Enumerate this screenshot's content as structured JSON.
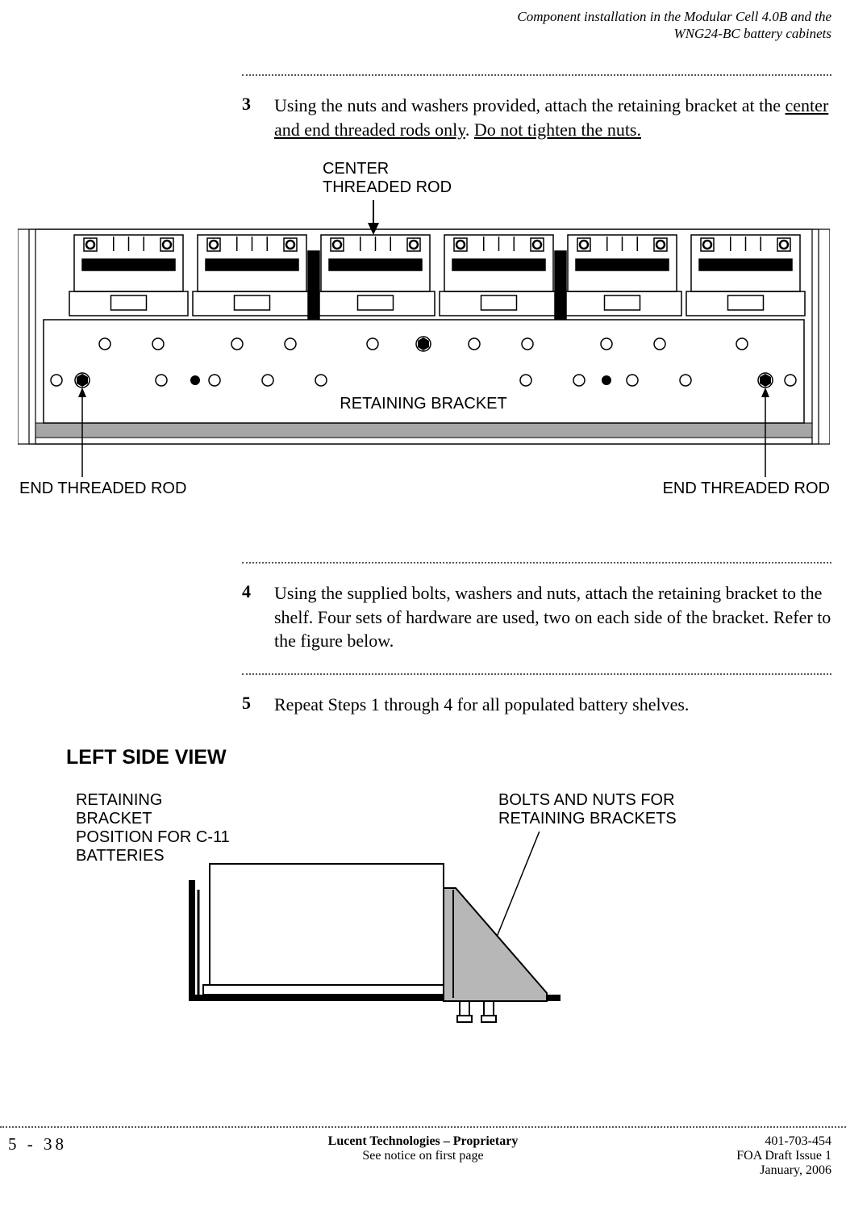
{
  "header": {
    "line1": "Component installation in the Modular Cell 4.0B and the",
    "line2": "WNG24-BC battery cabinets"
  },
  "steps": {
    "s3": {
      "num": "3",
      "pre": "Using the nuts and washers provided, attach the retaining bracket at the ",
      "ul1": "center and end threaded rods only",
      "mid": ". ",
      "ul2": "Do not tighten the nuts."
    },
    "s4": {
      "num": "4",
      "text": "Using the supplied bolts, washers and nuts, attach the retaining bracket to the shelf. Four sets of hardware are used, two on each side of the bracket. Refer to the figure below."
    },
    "s5": {
      "num": "5",
      "text": "Repeat Steps 1 through 4 for all populated battery shelves."
    }
  },
  "fig1_labels": {
    "center_top_l1": "CENTER",
    "center_top_l2": "THREADED ROD",
    "retaining_bracket": "RETAINING BRACKET",
    "end_left": "END THREADED ROD",
    "end_right": "END THREADED ROD"
  },
  "fig2": {
    "title": "LEFT SIDE VIEW",
    "left_label_l1": "RETAINING",
    "left_label_l2": "BRACKET",
    "left_label_l3": "POSITION FOR C-11",
    "left_label_l4": "BATTERIES",
    "right_label_l1": "BOLTS AND NUTS FOR",
    "right_label_l2": "RETAINING BRACKETS"
  },
  "footer": {
    "page": "5 - 38",
    "center_l1": "Lucent Technologies – Proprietary",
    "center_l2": "See notice on first page",
    "right_l1": "401-703-454",
    "right_l2": "FOA Draft Issue 1",
    "right_l3": "January, 2006"
  },
  "style": {
    "outer_border_thin": 1.5,
    "outer_border_thick": 6,
    "gray_bar": "#a6a6a6",
    "side_view_fill": "#b7b7b7"
  }
}
